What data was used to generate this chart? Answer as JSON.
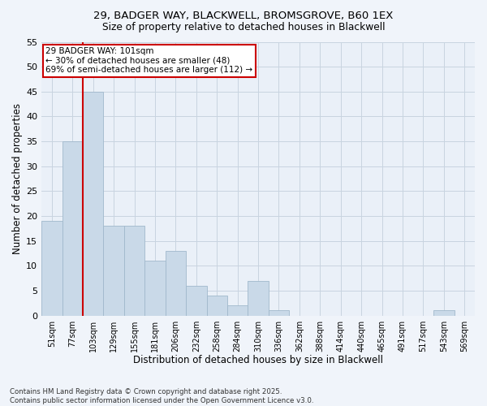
{
  "title1": "29, BADGER WAY, BLACKWELL, BROMSGROVE, B60 1EX",
  "title2": "Size of property relative to detached houses in Blackwell",
  "xlabel": "Distribution of detached houses by size in Blackwell",
  "ylabel": "Number of detached properties",
  "categories": [
    "51sqm",
    "77sqm",
    "103sqm",
    "129sqm",
    "155sqm",
    "181sqm",
    "206sqm",
    "232sqm",
    "258sqm",
    "284sqm",
    "310sqm",
    "336sqm",
    "362sqm",
    "388sqm",
    "414sqm",
    "440sqm",
    "465sqm",
    "491sqm",
    "517sqm",
    "543sqm",
    "569sqm"
  ],
  "values": [
    19,
    35,
    45,
    18,
    18,
    11,
    13,
    6,
    4,
    2,
    7,
    1,
    0,
    0,
    0,
    0,
    0,
    0,
    0,
    1,
    0
  ],
  "bar_color": "#c9d9e8",
  "bar_edgecolor": "#a0b8cc",
  "grid_color": "#c8d4e0",
  "bg_color": "#eaf0f8",
  "vline_color": "#cc0000",
  "annotation_text": "29 BADGER WAY: 101sqm\n← 30% of detached houses are smaller (48)\n69% of semi-detached houses are larger (112) →",
  "annotation_box_color": "#cc0000",
  "footnote": "Contains HM Land Registry data © Crown copyright and database right 2025.\nContains public sector information licensed under the Open Government Licence v3.0.",
  "ylim": [
    0,
    55
  ],
  "yticks": [
    0,
    5,
    10,
    15,
    20,
    25,
    30,
    35,
    40,
    45,
    50,
    55
  ],
  "fig_bg": "#f0f4fa"
}
